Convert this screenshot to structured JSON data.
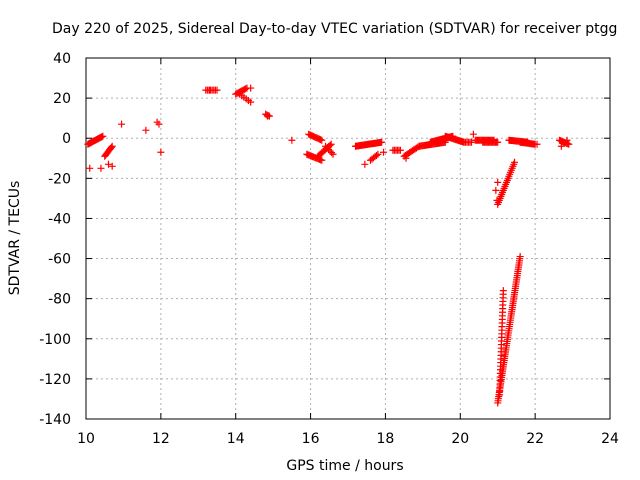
{
  "chart_data": {
    "type": "scatter",
    "title": "Day 220 of 2025, Sidereal Day-to-day VTEC variation (SDTVAR) for receiver ptgg",
    "xlabel": "GPS time / hours",
    "ylabel": "SDTVAR / TECUs",
    "xlim": [
      10,
      24
    ],
    "ylim": [
      -140,
      40
    ],
    "xticks": [
      10,
      12,
      14,
      16,
      18,
      20,
      22,
      24
    ],
    "yticks": [
      40,
      20,
      0,
      -20,
      -40,
      -60,
      -80,
      -100,
      -120,
      -140
    ],
    "xtick_labels": [
      "10",
      "12",
      "14",
      "16",
      "18",
      "20",
      "22",
      "24"
    ],
    "ytick_labels": [
      "40",
      "20",
      "0",
      "-20",
      "-40",
      "-60",
      "-80",
      "-100",
      "-120",
      "-140"
    ],
    "grid": true,
    "marker": "plus",
    "color": "#ff0000",
    "series": [
      {
        "name": "SDTVAR",
        "segments": [
          {
            "x0": 10.05,
            "x1": 10.45,
            "y0": -3,
            "y1": 1,
            "n": 18
          },
          {
            "x0": 10.5,
            "x1": 10.7,
            "y0": -9,
            "y1": -4,
            "n": 10
          },
          {
            "x0": 13.2,
            "x1": 13.5,
            "y0": 24,
            "y1": 24,
            "n": 8
          },
          {
            "x0": 14.0,
            "x1": 14.3,
            "y0": 22,
            "y1": 25,
            "n": 10
          },
          {
            "x0": 14.1,
            "x1": 14.4,
            "y0": 22,
            "y1": 18,
            "n": 6
          },
          {
            "x0": 14.8,
            "x1": 14.9,
            "y0": 12,
            "y1": 11,
            "n": 4
          },
          {
            "x0": 15.9,
            "x1": 16.3,
            "y0": -8,
            "y1": -11,
            "n": 14
          },
          {
            "x0": 15.95,
            "x1": 16.3,
            "y0": 2,
            "y1": -1,
            "n": 12
          },
          {
            "x0": 16.2,
            "x1": 16.55,
            "y0": -9,
            "y1": -3,
            "n": 12
          },
          {
            "x0": 16.4,
            "x1": 16.6,
            "y0": -4,
            "y1": -8,
            "n": 6
          },
          {
            "x0": 17.2,
            "x1": 17.9,
            "y0": -4,
            "y1": -2,
            "n": 30
          },
          {
            "x0": 17.6,
            "x1": 17.8,
            "y0": -11,
            "y1": -8,
            "n": 6
          },
          {
            "x0": 18.2,
            "x1": 18.4,
            "y0": -6,
            "y1": -6,
            "n": 6
          },
          {
            "x0": 18.5,
            "x1": 18.9,
            "y0": -9,
            "y1": -4,
            "n": 12
          },
          {
            "x0": 18.9,
            "x1": 19.6,
            "y0": -4,
            "y1": -2,
            "n": 26
          },
          {
            "x0": 19.2,
            "x1": 19.8,
            "y0": -2,
            "y1": 1,
            "n": 24
          },
          {
            "x0": 19.6,
            "x1": 20.1,
            "y0": 1,
            "y1": -2,
            "n": 20
          },
          {
            "x0": 20.1,
            "x1": 20.3,
            "y0": -2,
            "y1": -2,
            "n": 6
          },
          {
            "x0": 20.4,
            "x1": 20.9,
            "y0": -1,
            "y1": -1,
            "n": 18
          },
          {
            "x0": 20.6,
            "x1": 21.0,
            "y0": -2,
            "y1": -2,
            "n": 14
          },
          {
            "x0": 21.0,
            "x1": 21.45,
            "y0": -33,
            "y1": -12,
            "n": 22
          },
          {
            "x0": 21.3,
            "x1": 21.8,
            "y0": -1,
            "y1": -2,
            "n": 20
          },
          {
            "x0": 21.6,
            "x1": 22.0,
            "y0": -2,
            "y1": -3,
            "n": 16
          },
          {
            "x0": 21.0,
            "x1": 21.6,
            "y0": -132,
            "y1": -59,
            "n": 70
          },
          {
            "x0": 21.05,
            "x1": 21.15,
            "y0": -128,
            "y1": -76,
            "n": 30
          },
          {
            "x0": 22.65,
            "x1": 22.9,
            "y0": -1,
            "y1": -3,
            "n": 10
          }
        ],
        "points": [
          [
            10.1,
            -15
          ],
          [
            10.4,
            -15
          ],
          [
            10.6,
            -13
          ],
          [
            10.7,
            -14
          ],
          [
            10.95,
            7
          ],
          [
            11.6,
            4
          ],
          [
            11.9,
            8
          ],
          [
            11.95,
            7
          ],
          [
            12.0,
            -7
          ],
          [
            13.3,
            24
          ],
          [
            14.4,
            25
          ],
          [
            14.85,
            11
          ],
          [
            15.5,
            -1
          ],
          [
            17.45,
            -13
          ],
          [
            17.95,
            -7
          ],
          [
            18.55,
            -10
          ],
          [
            20.35,
            2
          ],
          [
            20.98,
            -31
          ],
          [
            20.95,
            -26
          ],
          [
            21.0,
            -22
          ],
          [
            22.05,
            -3
          ],
          [
            22.7,
            -4
          ],
          [
            22.85,
            -1
          ]
        ]
      }
    ]
  }
}
